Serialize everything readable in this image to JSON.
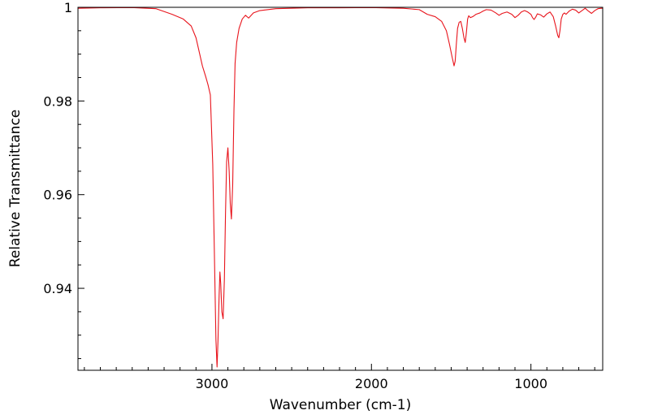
{
  "chart_data": {
    "type": "line",
    "title": "",
    "xlabel": "Wavenumber (cm-1)",
    "ylabel": "Relative Transmittance",
    "xlim": [
      3840,
      550
    ],
    "ylim": [
      0.9225,
      1.0
    ],
    "x_reversed": true,
    "grid": false,
    "legend": "none",
    "x_ticks": [
      {
        "value": 3000,
        "label": "3000"
      },
      {
        "value": 2000,
        "label": "2000"
      },
      {
        "value": 1000,
        "label": "1000"
      }
    ],
    "y_ticks": [
      {
        "value": 1.0,
        "label": "1"
      },
      {
        "value": 0.98,
        "label": "0.98"
      },
      {
        "value": 0.96,
        "label": "0.96"
      },
      {
        "value": 0.94,
        "label": "0.94"
      }
    ],
    "series": [
      {
        "name": "",
        "color": "#e8141c",
        "x": [
          3840,
          3700,
          3500,
          3350,
          3250,
          3180,
          3130,
          3100,
          3080,
          3060,
          3040,
          3025,
          3010,
          2995,
          2985,
          2975,
          2968,
          2962,
          2955,
          2950,
          2945,
          2938,
          2930,
          2922,
          2915,
          2908,
          2900,
          2892,
          2885,
          2878,
          2870,
          2862,
          2855,
          2845,
          2830,
          2810,
          2790,
          2770,
          2740,
          2700,
          2600,
          2400,
          2200,
          2000,
          1800,
          1700,
          1650,
          1600,
          1560,
          1530,
          1510,
          1495,
          1482,
          1475,
          1468,
          1460,
          1450,
          1440,
          1430,
          1420,
          1412,
          1405,
          1397,
          1390,
          1380,
          1365,
          1345,
          1320,
          1300,
          1280,
          1250,
          1220,
          1200,
          1180,
          1150,
          1120,
          1100,
          1080,
          1060,
          1040,
          1020,
          1000,
          990,
          980,
          970,
          960,
          940,
          920,
          900,
          880,
          860,
          845,
          832,
          825,
          818,
          810,
          800,
          790,
          780,
          760,
          740,
          720,
          700,
          680,
          660,
          640,
          620,
          600,
          580,
          560,
          550
        ],
        "values": [
          0.9998,
          0.9999,
          0.99995,
          0.9997,
          0.9985,
          0.9975,
          0.996,
          0.9935,
          0.9905,
          0.9875,
          0.9853,
          0.9835,
          0.9813,
          0.9665,
          0.948,
          0.929,
          0.9232,
          0.929,
          0.9385,
          0.9435,
          0.941,
          0.935,
          0.9335,
          0.942,
          0.956,
          0.967,
          0.97,
          0.965,
          0.958,
          0.9548,
          0.962,
          0.978,
          0.988,
          0.9925,
          0.9955,
          0.9975,
          0.9983,
          0.9977,
          0.9988,
          0.9993,
          0.9997,
          0.9999,
          0.9999,
          0.99995,
          0.9998,
          0.9995,
          0.9985,
          0.998,
          0.997,
          0.995,
          0.992,
          0.9895,
          0.9875,
          0.9885,
          0.992,
          0.9955,
          0.9968,
          0.997,
          0.9955,
          0.9935,
          0.9925,
          0.9945,
          0.9975,
          0.9982,
          0.9978,
          0.998,
          0.9985,
          0.9988,
          0.9992,
          0.9995,
          0.9994,
          0.9988,
          0.9983,
          0.9987,
          0.999,
          0.9985,
          0.9978,
          0.9983,
          0.999,
          0.9993,
          0.999,
          0.9985,
          0.9978,
          0.9974,
          0.9979,
          0.9986,
          0.9984,
          0.9979,
          0.9986,
          0.999,
          0.998,
          0.996,
          0.994,
          0.9935,
          0.995,
          0.9975,
          0.9985,
          0.9988,
          0.9985,
          0.9992,
          0.9996,
          0.9994,
          0.9988,
          0.9993,
          0.9998,
          0.9992,
          0.9987,
          0.9993,
          0.9997,
          0.9998,
          0.9998
        ]
      }
    ]
  }
}
